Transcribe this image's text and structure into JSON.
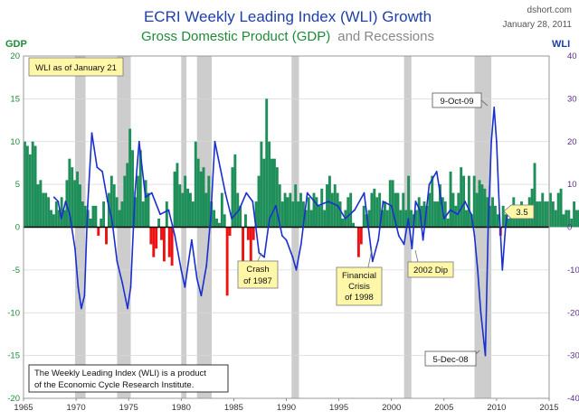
{
  "header": {
    "title": "ECRI Weekly Leading Index (WLI) Growth",
    "subtitle_gdp": "Gross Domestic Product (GDP)",
    "subtitle_and_recessions": "and Recessions",
    "site": "dshort.com",
    "date": "January 28, 2011"
  },
  "axes": {
    "left_title": "GDP",
    "right_title": "WLI"
  },
  "annotations": {
    "wli_as_of": "WLI as of January 21",
    "peak": "9-Oct-09",
    "trough": "5-Dec-08",
    "current_value": "3.5",
    "crash_1987_line1": "Crash",
    "crash_1987_line2": "of 1987",
    "crisis_1998_line1": "Financial",
    "crisis_1998_line2": "Crisis",
    "crisis_1998_line3": "of 1998",
    "dip_2002": "2002 Dip",
    "note_line1": "The Weekly Leading Index (WLI) is a product",
    "note_line2": "of the Economic Cycle Research Institute."
  },
  "colors": {
    "gdp_positive": "#1f8f5a",
    "gdp_negative": "#ee1111",
    "wli_line": "#1a2fd0",
    "recession_band": "#c4c4c4",
    "annotation_fill": "#fff7a8"
  },
  "chart_data": {
    "type": "bar+line",
    "x_range": [
      1965,
      2015
    ],
    "x_ticks": [
      1965,
      1970,
      1975,
      1980,
      1985,
      1990,
      1995,
      2000,
      2005,
      2010,
      2015
    ],
    "left_axis": {
      "label": "GDP",
      "range": [
        -20,
        20
      ],
      "ticks": [
        -20,
        -15,
        -10,
        -5,
        0,
        5,
        10,
        15,
        20
      ]
    },
    "right_axis": {
      "label": "WLI",
      "range": [
        -40,
        40
      ],
      "ticks": [
        -40,
        -30,
        -20,
        -10,
        0,
        10,
        20,
        30,
        40
      ]
    },
    "recessions": [
      [
        1969.9,
        1970.9
      ],
      [
        1973.9,
        1975.2
      ],
      [
        1980.0,
        1980.5
      ],
      [
        1981.5,
        1982.9
      ],
      [
        1990.5,
        1991.2
      ],
      [
        2001.2,
        2001.9
      ],
      [
        2007.9,
        2009.5
      ]
    ],
    "gdp_quarterly": {
      "start": 1965.0,
      "step": 0.25,
      "values": [
        10,
        9.5,
        8.5,
        10,
        9.5,
        5,
        5.5,
        4,
        4,
        3.5,
        2,
        1.5,
        3,
        2,
        3.5,
        2,
        5.5,
        8,
        7,
        5.5,
        6.5,
        5,
        3,
        2.5,
        2,
        1,
        2.5,
        2.5,
        -1,
        1,
        3,
        -2,
        4,
        6,
        5,
        3.5,
        2,
        3,
        6,
        7.5,
        11.5,
        9,
        3.5,
        6,
        9,
        3,
        5.5,
        4,
        -2,
        -3.5,
        -2.5,
        1,
        -1.5,
        -4,
        3,
        -3.5,
        -4.5,
        6.5,
        7.5,
        5,
        4,
        6,
        4.5,
        4,
        3,
        10,
        8,
        6.5,
        7,
        4,
        6,
        3,
        2,
        1,
        0.5,
        4,
        1.5,
        -8,
        -1,
        7,
        8.5,
        4,
        2.5,
        -5,
        1.5,
        -1.5,
        -6.5,
        -1.5,
        3,
        6,
        10,
        8,
        15,
        10,
        8,
        8,
        7,
        5,
        3,
        4,
        3.5,
        4,
        3,
        5,
        3,
        4,
        3,
        2,
        3.5,
        2,
        4,
        3.5,
        2.5,
        4.5,
        2,
        5,
        6,
        4,
        5,
        4,
        3,
        1,
        2,
        3.5,
        4,
        0.5,
        0,
        -3.5,
        -2,
        2.5,
        1.5,
        2,
        4,
        4.5,
        3.5,
        4,
        2,
        3,
        2,
        5.5,
        5.5,
        4,
        4,
        2,
        4,
        2,
        6,
        2,
        1.5,
        2,
        3.5,
        2.5,
        3,
        2.5,
        4,
        6,
        3,
        3,
        5,
        3.5,
        3,
        1,
        6.5,
        4,
        2.5,
        4,
        7,
        6,
        2,
        6,
        1.5,
        6,
        4,
        5.5,
        5,
        4.5,
        3.5,
        2.5,
        3.5,
        2.5,
        1.5,
        -1,
        2.5,
        1.5,
        1,
        2,
        3.5,
        2,
        1,
        3,
        2,
        2,
        3.5,
        4.5,
        7.5,
        3,
        3,
        4,
        3,
        3,
        4,
        3,
        2,
        4,
        4.5,
        1.5,
        2,
        2,
        1,
        3,
        2,
        2,
        -1,
        1.5,
        -4,
        -7,
        -5,
        -0.5,
        1.5,
        4.5,
        4,
        2.5,
        2,
        3
      ]
    },
    "wli_points": {
      "x": [
        1967.9,
        1968.3,
        1968.6,
        1969.0,
        1969.4,
        1969.9,
        1970.2,
        1970.5,
        1970.8,
        1971.1,
        1971.5,
        1972.0,
        1972.5,
        1973.0,
        1973.4,
        1973.9,
        1974.4,
        1974.9,
        1975.2,
        1975.6,
        1976.0,
        1976.6,
        1977.2,
        1978.0,
        1978.8,
        1979.4,
        1980.0,
        1980.35,
        1980.7,
        1981.0,
        1981.5,
        1981.9,
        1982.4,
        1982.8,
        1983.2,
        1983.7,
        1984.2,
        1984.8,
        1985.5,
        1986.2,
        1986.8,
        1987.4,
        1987.9,
        1988.4,
        1989.0,
        1989.6,
        1990.0,
        1990.6,
        1990.95,
        1991.4,
        1992.0,
        1993.0,
        1994.0,
        1994.9,
        1995.6,
        1996.5,
        1997.4,
        1998.2,
        1998.75,
        1999.2,
        2000.0,
        2000.7,
        2001.2,
        2001.6,
        2001.95,
        2002.3,
        2002.7,
        2003.0,
        2003.6,
        2004.3,
        2005.0,
        2005.6,
        2006.3,
        2007.0,
        2007.6,
        2007.9,
        2008.2,
        2008.5,
        2008.8,
        2008.93,
        2009.2,
        2009.5,
        2009.77,
        2010.0,
        2010.3,
        2010.55,
        2010.85,
        2011.07
      ],
      "y": [
        7,
        6,
        2,
        6,
        3,
        -5,
        -14,
        -19,
        -16,
        5,
        22,
        14,
        13,
        6,
        2,
        -8,
        -13,
        -19,
        -14,
        8,
        20,
        7,
        8,
        3,
        4,
        -2,
        -10,
        -14,
        -8,
        -3,
        -12,
        -16,
        -9,
        2,
        20,
        14,
        8,
        2,
        4,
        8,
        6,
        -6,
        -7,
        2,
        5,
        -2,
        -3,
        -7,
        -10,
        -4,
        8,
        5,
        6,
        5,
        2,
        4,
        8,
        -8,
        -3,
        6,
        5,
        -2,
        -4,
        2,
        -5,
        6,
        4,
        -3,
        10,
        13,
        2,
        4,
        3,
        6,
        3,
        -2,
        -10,
        -20,
        -27,
        -30,
        0,
        20,
        28,
        20,
        2,
        -10,
        0,
        3.5
      ]
    },
    "wli_latest": {
      "date": "January 21",
      "value": 3.5
    },
    "wli_peak": {
      "label": "9-Oct-09",
      "value": 28
    },
    "wli_trough": {
      "label": "5-Dec-08",
      "value": -30
    }
  }
}
